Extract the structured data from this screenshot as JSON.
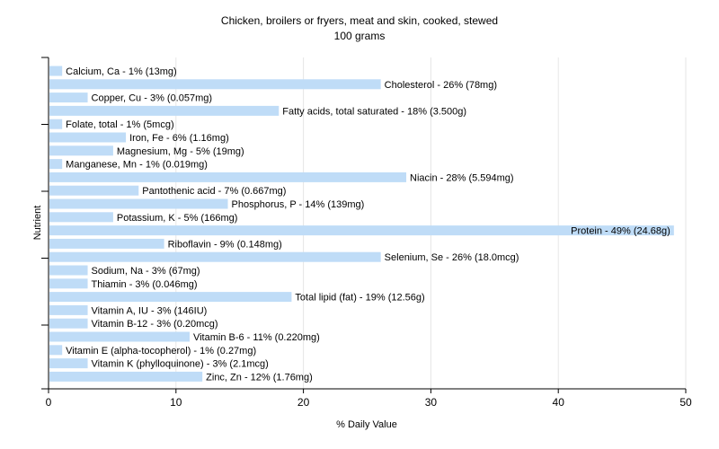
{
  "chart_data": {
    "type": "bar",
    "orientation": "horizontal",
    "title": "Chicken, broilers or fryers, meat and skin, cooked, stewed",
    "subtitle": "100 grams",
    "xlabel": "% Daily Value",
    "ylabel": "Nutrient",
    "xlim": [
      0,
      50
    ],
    "x_ticks": [
      "0",
      "10",
      "20",
      "30",
      "40",
      "50"
    ],
    "grid": true,
    "bar_color": "#bfdcf7",
    "categories": [
      "Calcium, Ca",
      "Cholesterol",
      "Copper, Cu",
      "Fatty acids, total saturated",
      "Folate, total",
      "Iron, Fe",
      "Magnesium, Mg",
      "Manganese, Mn",
      "Niacin",
      "Pantothenic acid",
      "Phosphorus, P",
      "Potassium, K",
      "Protein",
      "Riboflavin",
      "Selenium, Se",
      "Sodium, Na",
      "Thiamin",
      "Total lipid (fat)",
      "Vitamin A, IU",
      "Vitamin B-12",
      "Vitamin B-6",
      "Vitamin E (alpha-tocopherol)",
      "Vitamin K (phylloquinone)",
      "Zinc, Zn"
    ],
    "values": [
      1,
      26,
      3,
      18,
      1,
      6,
      5,
      1,
      28,
      7,
      14,
      5,
      49,
      9,
      26,
      3,
      3,
      19,
      3,
      3,
      11,
      1,
      3,
      12
    ],
    "labels": [
      "Calcium, Ca - 1% (13mg)",
      "Cholesterol - 26% (78mg)",
      "Copper, Cu - 3% (0.057mg)",
      "Fatty acids, total saturated - 18% (3.500g)",
      "Folate, total - 1% (5mcg)",
      "Iron, Fe - 6% (1.16mg)",
      "Magnesium, Mg - 5% (19mg)",
      "Manganese, Mn - 1% (0.019mg)",
      "Niacin - 28% (5.594mg)",
      "Pantothenic acid - 7% (0.667mg)",
      "Phosphorus, P - 14% (139mg)",
      "Potassium, K - 5% (166mg)",
      "Protein - 49% (24.68g)",
      "Riboflavin - 9% (0.148mg)",
      "Selenium, Se - 26% (18.0mcg)",
      "Sodium, Na - 3% (67mg)",
      "Thiamin - 3% (0.046mg)",
      "Total lipid (fat) - 19% (12.56g)",
      "Vitamin A, IU - 3% (146IU)",
      "Vitamin B-12 - 3% (0.20mcg)",
      "Vitamin B-6 - 11% (0.220mg)",
      "Vitamin E (alpha-tocopherol) - 1% (0.27mg)",
      "Vitamin K (phylloquinone) - 3% (2.1mcg)",
      "Zinc, Zn - 12% (1.76mg)"
    ]
  }
}
